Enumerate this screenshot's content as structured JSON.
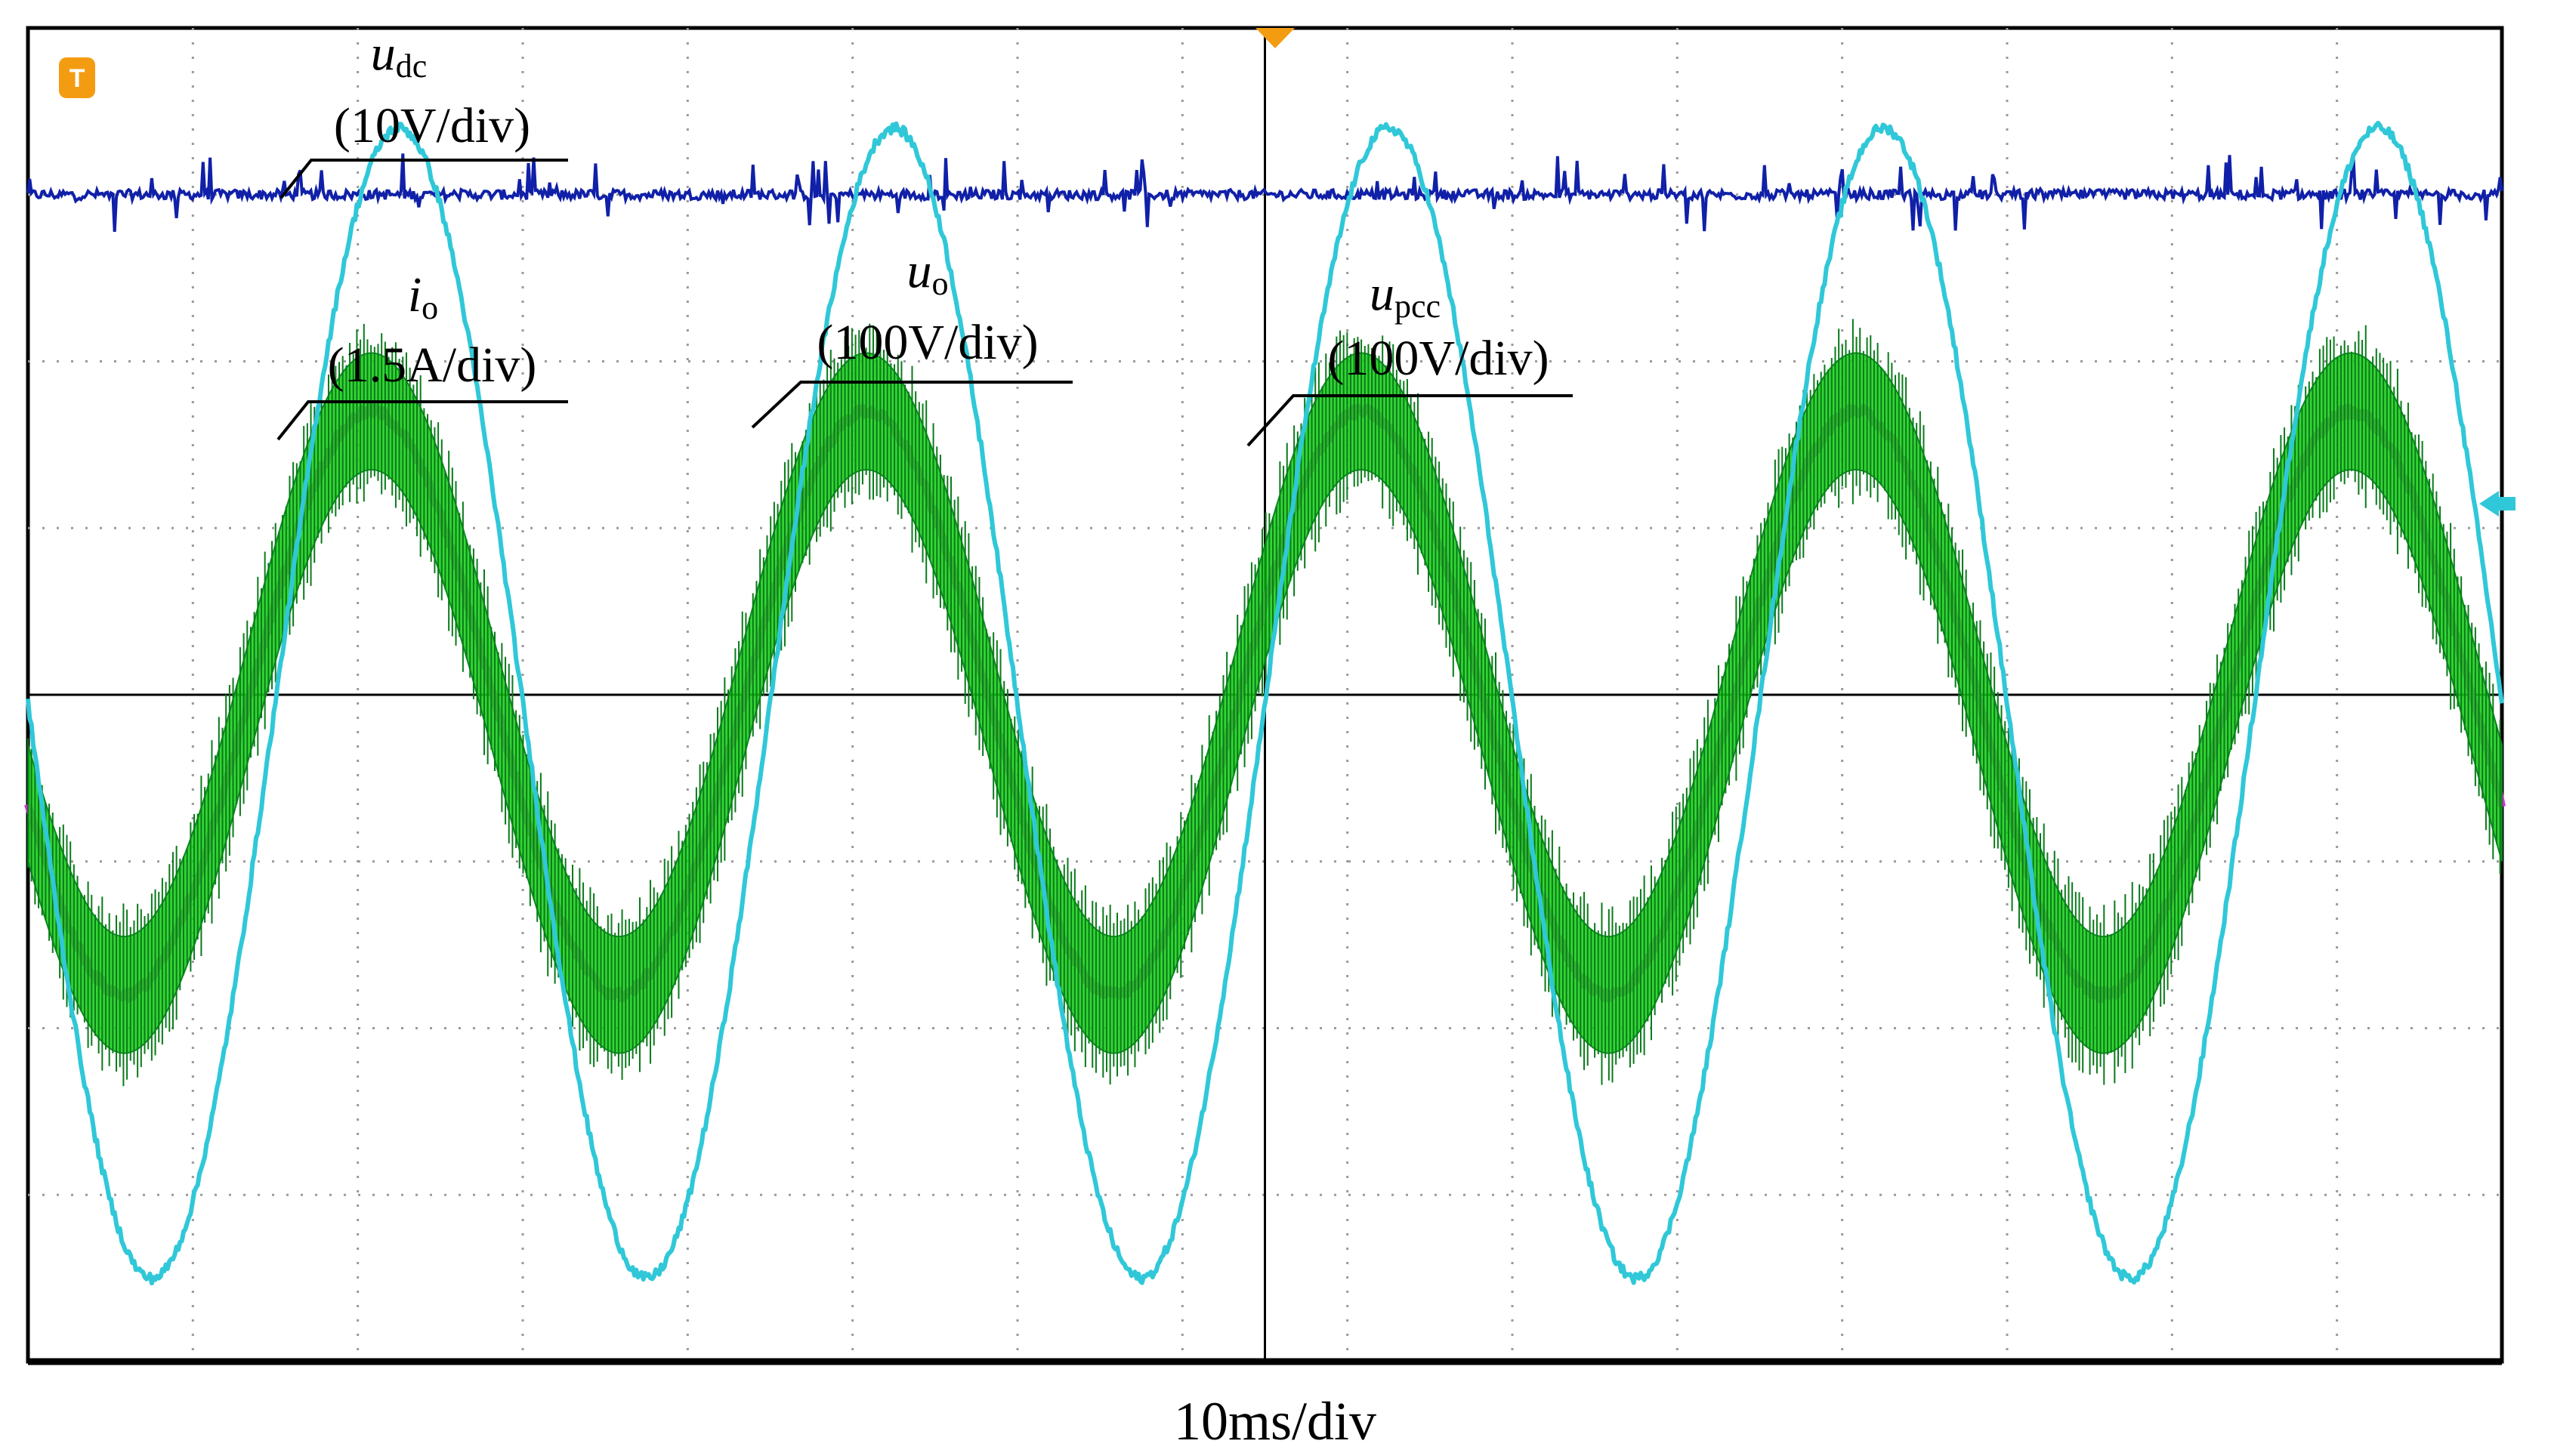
{
  "chart_data": {
    "type": "line",
    "title": "",
    "xlabel": "10ms/div",
    "ylabel": "",
    "divisions": {
      "x": 15,
      "y": 8
    },
    "cycles_shown": 5,
    "grid": "dotted",
    "series": [
      {
        "name": "u_dc",
        "label_main": "u",
        "label_sub": "dc",
        "scale": "(10V/div)",
        "color": "#1020a8",
        "shape": "dc",
        "level_div": 3.0,
        "noise_div": 0.12
      },
      {
        "name": "i_o",
        "label_main": "i",
        "label_sub": "o",
        "scale": "(1.5A/div)",
        "color": "#e020e0",
        "shape": "sine",
        "amplitude_div": 1.75,
        "offset_div": -0.05,
        "phase_deg": 200
      },
      {
        "name": "u_o",
        "label_main": "u",
        "label_sub": "o",
        "scale": "(100V/div)",
        "color": "#10d010",
        "shape": "sine_band",
        "amplitude_div": 1.75,
        "offset_div": -0.05,
        "phase_deg": 200,
        "band_div": 0.35
      },
      {
        "name": "u_pcc",
        "label_main": "u",
        "label_sub": "pcc",
        "scale": "(100V/div)",
        "color": "#30c8d8",
        "shape": "sine",
        "amplitude_div": 3.45,
        "offset_div": -0.05,
        "phase_deg": 180
      }
    ],
    "markers": {
      "trigger": "T",
      "trigger_color": "#f39c12",
      "level_color": "#30c8d8"
    }
  }
}
